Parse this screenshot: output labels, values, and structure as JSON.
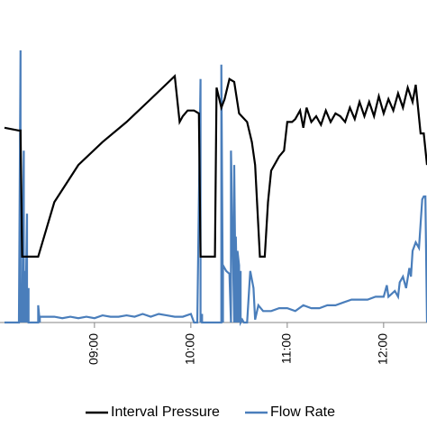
{
  "chart_data": {
    "type": "line",
    "title": "",
    "xlabel": "",
    "ylabel": "",
    "x_ticks": [
      "09:00",
      "10:00",
      "11:00",
      "12:00"
    ],
    "legend": {
      "placement": "bottom",
      "entries": [
        "Interval Pressure",
        "Flow Rate"
      ]
    },
    "grid": false,
    "series": [
      {
        "name": "Interval Pressure",
        "color": "#000000",
        "axis": "normalized 0-1 (axis not visible)",
        "x": [
          "08:04",
          "08:13",
          "08:14",
          "08:15",
          "08:16",
          "08:25",
          "08:35",
          "08:50",
          "09:05",
          "09:20",
          "09:35",
          "09:50",
          "09:53",
          "09:55",
          "09:58",
          "10:02",
          "10:05",
          "10:06",
          "10:15",
          "10:16",
          "10:19",
          "10:21",
          "10:24",
          "10:27",
          "10:30",
          "10:35",
          "10:38",
          "10:40",
          "10:43",
          "10:46",
          "10:48",
          "10:50",
          "10:55",
          "10:58",
          "11:00",
          "11:03",
          "11:05",
          "11:08",
          "11:10",
          "11:12",
          "11:15",
          "11:18",
          "11:21",
          "11:24",
          "11:27",
          "11:30",
          "11:33",
          "11:36",
          "11:39",
          "11:42",
          "11:45",
          "11:48",
          "11:51",
          "11:54",
          "11:57",
          "12:00",
          "12:03",
          "12:06",
          "12:09",
          "12:12",
          "12:15",
          "12:18",
          "12:20",
          "12:23",
          "12:25",
          "12:27"
        ],
        "values": [
          0.68,
          0.67,
          0.67,
          0.23,
          0.23,
          0.23,
          0.42,
          0.55,
          0.63,
          0.7,
          0.78,
          0.86,
          0.7,
          0.72,
          0.74,
          0.74,
          0.73,
          0.23,
          0.23,
          0.82,
          0.75,
          0.78,
          0.85,
          0.84,
          0.73,
          0.7,
          0.63,
          0.55,
          0.23,
          0.23,
          0.42,
          0.53,
          0.58,
          0.6,
          0.7,
          0.7,
          0.71,
          0.74,
          0.68,
          0.75,
          0.7,
          0.72,
          0.69,
          0.74,
          0.7,
          0.73,
          0.72,
          0.7,
          0.75,
          0.71,
          0.77,
          0.72,
          0.77,
          0.72,
          0.79,
          0.73,
          0.78,
          0.74,
          0.8,
          0.75,
          0.82,
          0.77,
          0.83,
          0.66,
          0.66,
          0.55
        ]
      },
      {
        "name": "Flow Rate",
        "color": "#4a7ebb",
        "axis": "normalized 0-1 (axis not visible)",
        "x": [
          "08:04",
          "08:13",
          "08:14",
          "08:14",
          "08:15",
          "08:15",
          "08:16",
          "08:16",
          "08:17",
          "08:17",
          "08:18",
          "08:18",
          "08:19",
          "08:19",
          "08:20",
          "08:25",
          "08:25",
          "08:26",
          "08:26",
          "08:30",
          "08:35",
          "08:40",
          "08:45",
          "08:50",
          "08:55",
          "09:00",
          "09:05",
          "09:10",
          "09:15",
          "09:20",
          "09:25",
          "09:30",
          "09:35",
          "09:40",
          "09:45",
          "09:50",
          "09:55",
          "10:00",
          "10:02",
          "10:04",
          "10:06",
          "10:06",
          "10:07",
          "10:07",
          "10:08",
          "10:09",
          "10:10",
          "10:12",
          "10:14",
          "10:16",
          "10:19",
          "10:19",
          "10:20",
          "10:20",
          "10:22",
          "10:24",
          "10:25",
          "10:25",
          "10:27",
          "10:27",
          "10:28",
          "10:28",
          "10:29",
          "10:29",
          "10:30",
          "10:30",
          "10:31",
          "10:31",
          "10:32",
          "10:33",
          "10:35",
          "10:37",
          "10:39",
          "10:40",
          "10:42",
          "10:45",
          "10:50",
          "10:55",
          "11:00",
          "11:05",
          "11:10",
          "11:15",
          "11:20",
          "11:25",
          "11:30",
          "11:35",
          "11:40",
          "11:45",
          "11:50",
          "11:55",
          "12:00",
          "12:02",
          "12:03",
          "12:05",
          "12:07",
          "12:09",
          "12:10",
          "12:12",
          "12:14",
          "12:16",
          "12:17",
          "12:18",
          "12:20",
          "12:22",
          "12:24",
          "12:25",
          "12:26",
          "12:27"
        ],
        "values": [
          0.0,
          0.0,
          0.95,
          0.0,
          0.12,
          0.0,
          0.6,
          0.0,
          0.18,
          0.0,
          0.38,
          0.0,
          0.12,
          0.0,
          0.0,
          0.0,
          0.06,
          0.0,
          0.02,
          0.02,
          0.02,
          0.015,
          0.02,
          0.015,
          0.02,
          0.015,
          0.025,
          0.02,
          0.02,
          0.025,
          0.02,
          0.03,
          0.02,
          0.03,
          0.025,
          0.02,
          0.02,
          0.03,
          0.0,
          0.0,
          0.85,
          0.0,
          0.03,
          0.0,
          0.0,
          0.0,
          0.0,
          0.0,
          0.0,
          0.0,
          0.0,
          0.9,
          0.0,
          0.2,
          0.18,
          0.17,
          0.0,
          0.6,
          0.0,
          0.55,
          0.0,
          0.3,
          0.0,
          0.25,
          0.2,
          0.0,
          0.18,
          0.0,
          0.01,
          0.0,
          0.0,
          0.18,
          0.12,
          0.01,
          0.06,
          0.04,
          0.04,
          0.05,
          0.05,
          0.04,
          0.06,
          0.05,
          0.05,
          0.06,
          0.06,
          0.07,
          0.08,
          0.08,
          0.08,
          0.09,
          0.09,
          0.13,
          0.09,
          0.1,
          0.11,
          0.09,
          0.14,
          0.16,
          0.12,
          0.19,
          0.16,
          0.25,
          0.28,
          0.26,
          0.43,
          0.44,
          0.44,
          0.0
        ]
      }
    ]
  }
}
